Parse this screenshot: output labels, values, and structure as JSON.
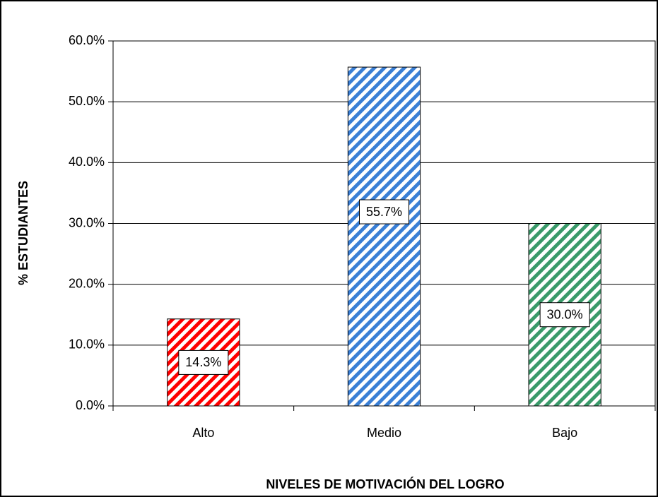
{
  "chart_data": {
    "type": "bar",
    "categories": [
      "Alto",
      "Medio",
      "Bajo"
    ],
    "values": [
      14.3,
      55.7,
      30.0
    ],
    "value_labels": [
      "14.3%",
      "55.7%",
      "30.0%"
    ],
    "colors": [
      "#ff0000",
      "#3a7fd5",
      "#3a9a6a"
    ],
    "xlabel": "NIVELES DE MOTIVACIÓN DEL LOGRO",
    "ylabel": "% ESTUDIANTES",
    "ylim": [
      0,
      60
    ],
    "yticks": [
      {
        "value": 0,
        "label": "0.0%"
      },
      {
        "value": 10,
        "label": "10.0%"
      },
      {
        "value": 20,
        "label": "20.0%"
      },
      {
        "value": 30,
        "label": "30.0%"
      },
      {
        "value": 40,
        "label": "40.0%"
      },
      {
        "value": 50,
        "label": "50.0%"
      },
      {
        "value": 60,
        "label": "60.0%"
      }
    ],
    "grid": true
  }
}
